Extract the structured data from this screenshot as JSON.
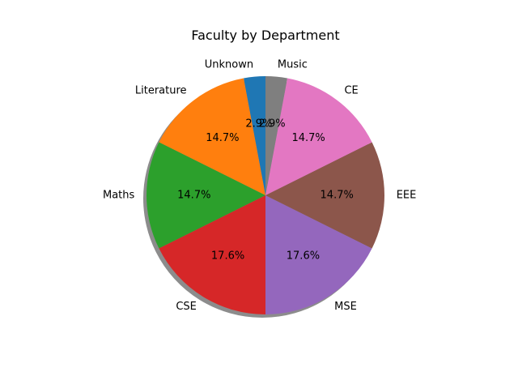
{
  "chart_data": {
    "type": "pie",
    "title": "Faculty by Department",
    "start_angle_deg": 90,
    "direction": "counterclockwise",
    "shadow": true,
    "slices": [
      {
        "label": "Unknown",
        "value": 1,
        "percent_label": "2.9%",
        "color": "#1f77b4"
      },
      {
        "label": "Literature",
        "value": 5,
        "percent_label": "14.7%",
        "color": "#ff7f0e"
      },
      {
        "label": "Maths",
        "value": 5,
        "percent_label": "14.7%",
        "color": "#2ca02c"
      },
      {
        "label": "CSE",
        "value": 6,
        "percent_label": "17.6%",
        "color": "#d62728"
      },
      {
        "label": "MSE",
        "value": 6,
        "percent_label": "17.6%",
        "color": "#9467bd"
      },
      {
        "label": "EEE",
        "value": 5,
        "percent_label": "14.7%",
        "color": "#8c564b"
      },
      {
        "label": "CE",
        "value": 5,
        "percent_label": "14.7%",
        "color": "#e377c2"
      },
      {
        "label": "Music",
        "value": 1,
        "percent_label": "2.9%",
        "color": "#7f7f7f"
      }
    ]
  }
}
